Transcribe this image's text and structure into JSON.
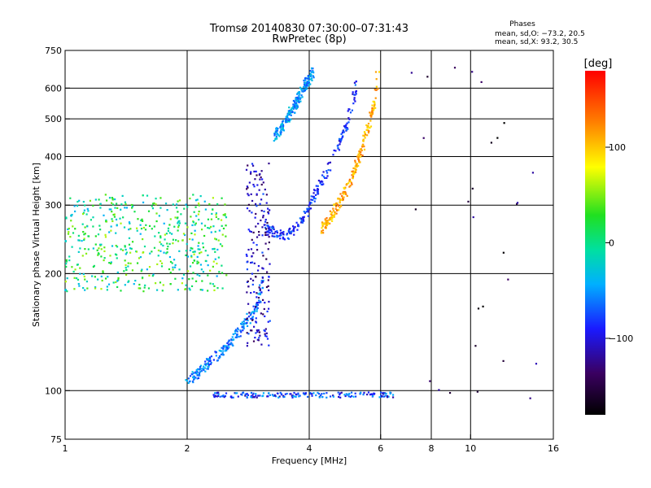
{
  "chart_data": {
    "type": "scatter",
    "title": "Tromsø 20140830 07:30:00–07:31:43",
    "subtitle": "RwPretec (8p)",
    "phases": {
      "heading": "Phases",
      "line_o": "mean, sd,O: −73.2, 20.5",
      "line_x": "mean, sd,X:  93.2, 30.5"
    },
    "xlabel": "Frequency [MHz]",
    "ylabel": "Stationary phase Virtual Height [km]",
    "x_scale": "log",
    "y_scale": "log",
    "xlim": [
      1,
      16
    ],
    "ylim": [
      75,
      750
    ],
    "x_ticks": [
      1,
      2,
      4,
      6,
      8,
      10,
      16
    ],
    "x_tick_labels": [
      "1",
      "2",
      "4",
      "6",
      "8",
      "10",
      "16"
    ],
    "x_gridlines": [
      2,
      4,
      6,
      8,
      10
    ],
    "y_ticks": [
      75,
      100,
      200,
      300,
      400,
      500,
      600,
      750
    ],
    "y_tick_labels": [
      "75",
      "100",
      "200",
      "300",
      "400",
      "500",
      "600",
      "750"
    ],
    "y_gridlines": [
      100,
      200,
      300,
      400,
      500,
      600
    ],
    "colorbar": {
      "label": "[deg]",
      "range": [
        -180,
        180
      ],
      "ticks": [
        100,
        0,
        -100
      ],
      "tick_labels": [
        "100",
        "0",
        "−100"
      ]
    },
    "series": [
      {
        "name": "Low-frequency scatter (green/yellow)",
        "phase": 10,
        "f_range": [
          1.0,
          2.5
        ],
        "h_range": [
          180,
          320
        ]
      },
      {
        "name": "O-mode E/F1 trace",
        "phase": -60,
        "points": [
          [
            2.0,
            105
          ],
          [
            2.2,
            115
          ],
          [
            2.5,
            130
          ],
          [
            2.8,
            150
          ],
          [
            3.0,
            170
          ],
          [
            3.1,
            200
          ]
        ]
      },
      {
        "name": "O-mode F2 trace (blue)",
        "phase": -85,
        "points": [
          [
            3.1,
            260
          ],
          [
            3.5,
            250
          ],
          [
            3.8,
            270
          ],
          [
            4.2,
            330
          ],
          [
            4.6,
            400
          ],
          [
            5.0,
            500
          ],
          [
            5.3,
            650
          ]
        ]
      },
      {
        "name": "X-mode F2 trace (orange)",
        "phase": 110,
        "points": [
          [
            4.3,
            260
          ],
          [
            4.7,
            300
          ],
          [
            5.1,
            350
          ],
          [
            5.5,
            450
          ],
          [
            5.8,
            550
          ],
          [
            5.9,
            650
          ]
        ]
      },
      {
        "name": "Spread cusp near 3.1 MHz",
        "phase": -110,
        "f_range": [
          2.8,
          3.2
        ],
        "h_range": [
          130,
          390
        ]
      },
      {
        "name": "Upper branch 3.3–4.1 MHz",
        "phase": -50,
        "points": [
          [
            3.3,
            450
          ],
          [
            3.6,
            520
          ],
          [
            3.9,
            610
          ],
          [
            4.1,
            660
          ]
        ]
      },
      {
        "name": "E-layer ~98 km",
        "phase": -80,
        "f_range": [
          2.3,
          6.5
        ],
        "h_range": [
          96,
          99
        ]
      },
      {
        "name": "Sparse high-frequency points",
        "phase": -150,
        "f_range": [
          7,
          15
        ],
        "h_range": [
          90,
          700
        ]
      }
    ]
  }
}
